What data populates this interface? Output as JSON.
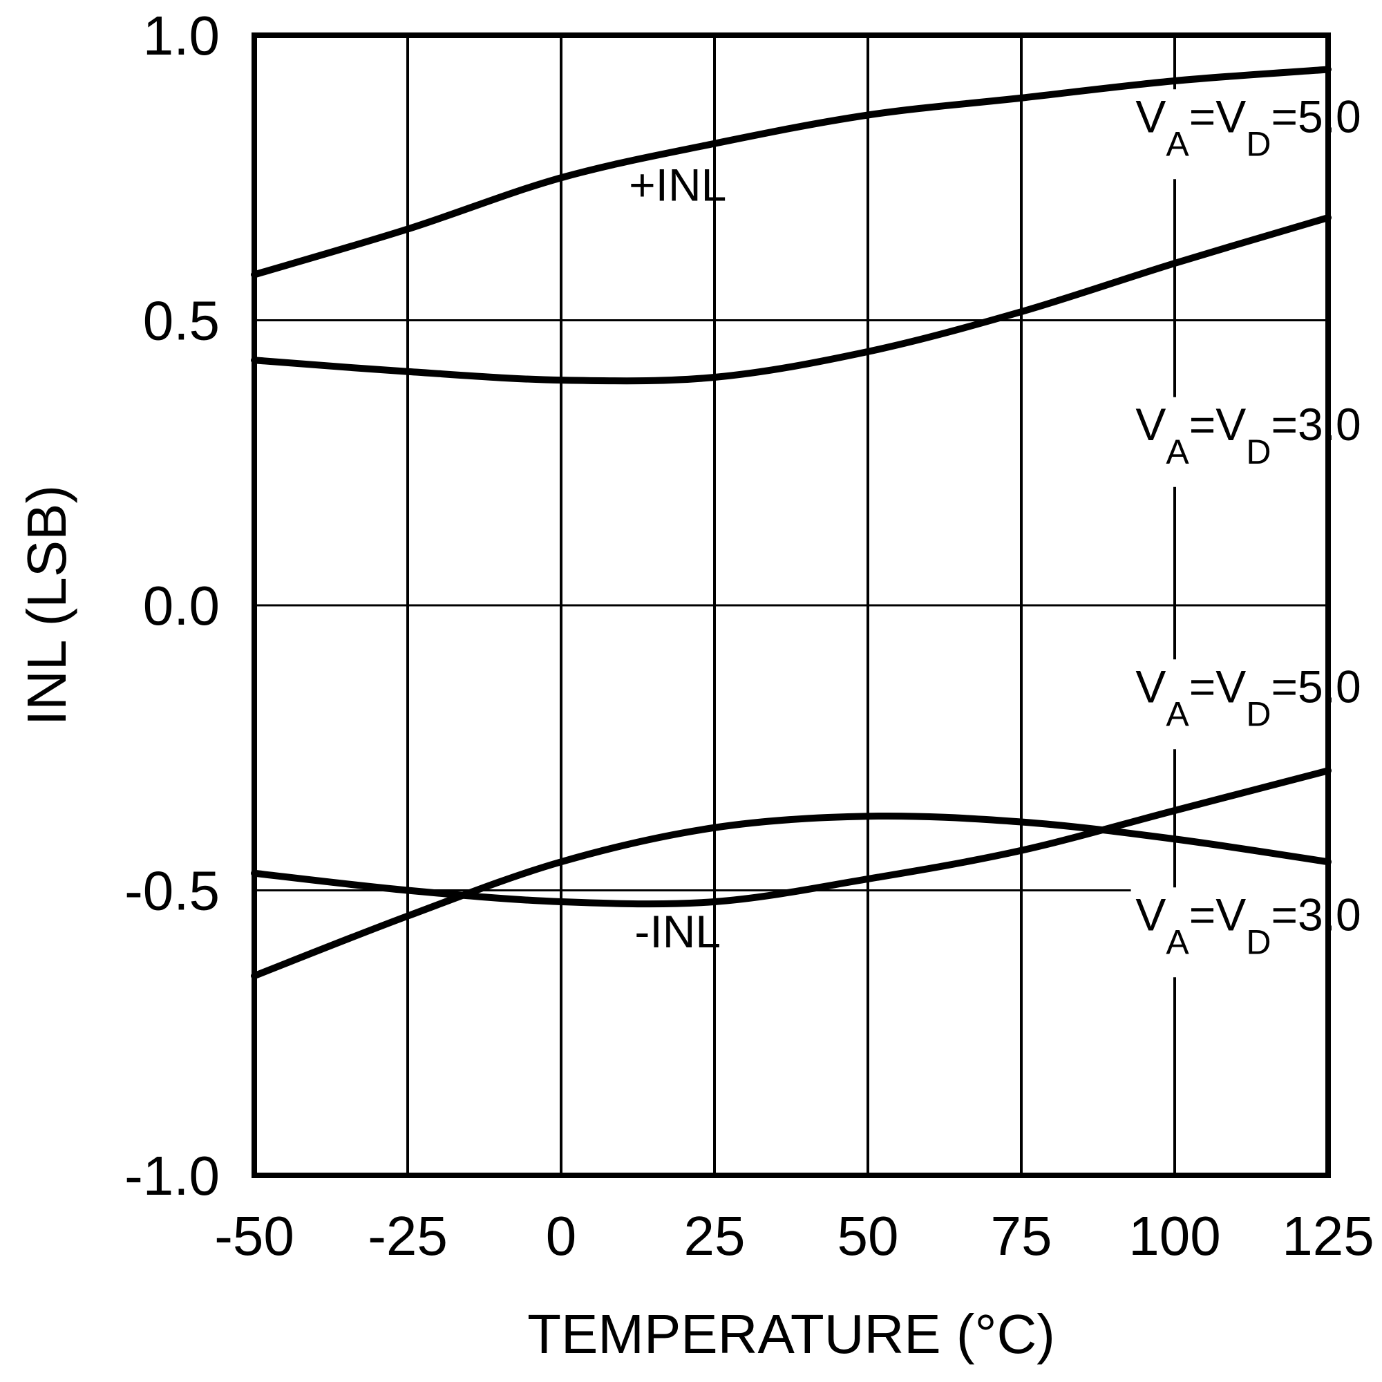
{
  "chart_data": {
    "type": "line",
    "title": "",
    "xlabel": "TEMPERATURE (°C)",
    "ylabel": "INL (LSB)",
    "xlim": [
      -50,
      125
    ],
    "ylim": [
      -1.0,
      1.0
    ],
    "grid": true,
    "x_ticks": [
      -50,
      -25,
      0,
      25,
      50,
      75,
      100,
      125
    ],
    "x_tick_labels": [
      "-50",
      "-25",
      "0",
      "25",
      "50",
      "75",
      "100",
      "125"
    ],
    "y_ticks": [
      1.0,
      0.5,
      0.0,
      -0.5,
      -1.0
    ],
    "y_tick_labels": [
      "1.0",
      "0.5",
      "0.0",
      "-0.5",
      "-1.0"
    ],
    "x": [
      -50,
      -25,
      0,
      25,
      50,
      75,
      100,
      125
    ],
    "series": [
      {
        "values": [
          0.58,
          0.66,
          0.75,
          0.81,
          0.86,
          0.89,
          0.92,
          0.94
        ]
      },
      {
        "values": [
          0.43,
          0.41,
          0.395,
          0.4,
          0.445,
          0.515,
          0.6,
          0.68
        ]
      },
      {
        "values": [
          -0.65,
          -0.545,
          -0.45,
          -0.39,
          -0.37,
          -0.38,
          -0.41,
          -0.45
        ]
      },
      {
        "values": [
          -0.47,
          -0.5,
          -0.52,
          -0.52,
          -0.48,
          -0.43,
          -0.36,
          -0.29
        ]
      }
    ],
    "annotations": [
      {
        "id": "pos_inl",
        "text": "+INL",
        "x": 19,
        "y": 0.71
      },
      {
        "id": "neg_inl",
        "text": "-INL",
        "x": 19,
        "y": -0.6
      },
      {
        "id": "va5_top",
        "main": [
          "V",
          "=V",
          "=5.0"
        ],
        "subs": [
          "A",
          "D"
        ],
        "x": 112,
        "y": 0.83
      },
      {
        "id": "va3_top",
        "main": [
          "V",
          "=V",
          "=3.0"
        ],
        "subs": [
          "A",
          "D"
        ],
        "x": 112,
        "y": 0.29
      },
      {
        "id": "va5_bot",
        "main": [
          "V",
          "=V",
          "=5.0"
        ],
        "subs": [
          "A",
          "D"
        ],
        "x": 112,
        "y": -0.17
      },
      {
        "id": "va3_bot",
        "main": [
          "V",
          "=V",
          "=3.0"
        ],
        "subs": [
          "A",
          "D"
        ],
        "x": 112,
        "y": -0.57
      }
    ],
    "line_color": "#000000",
    "background": "#ffffff"
  }
}
